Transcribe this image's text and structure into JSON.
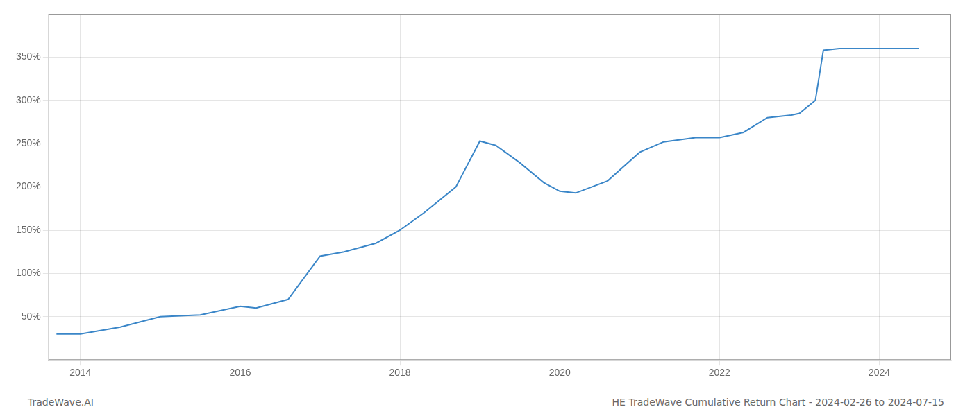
{
  "chart_data": {
    "type": "line",
    "annotations": [
      "TradeWave.AI",
      "HE TradeWave Cumulative Return Chart - 2024-02-26 to 2024-07-15"
    ],
    "x": [
      2013.7,
      2014.0,
      2014.5,
      2015.0,
      2015.5,
      2016.0,
      2016.2,
      2016.6,
      2017.0,
      2017.3,
      2017.7,
      2018.0,
      2018.3,
      2018.7,
      2019.0,
      2019.2,
      2019.5,
      2019.8,
      2020.0,
      2020.2,
      2020.6,
      2021.0,
      2021.3,
      2021.7,
      2022.0,
      2022.3,
      2022.6,
      2022.9,
      2023.0,
      2023.2,
      2023.3,
      2023.5,
      2024.0,
      2024.5
    ],
    "values": [
      30,
      30,
      38,
      50,
      52,
      62,
      60,
      70,
      120,
      125,
      135,
      150,
      170,
      200,
      253,
      248,
      228,
      205,
      195,
      193,
      207,
      240,
      252,
      257,
      257,
      263,
      280,
      283,
      285,
      300,
      358,
      360,
      360,
      360
    ],
    "color": "#3a86c8",
    "xlim": [
      2013.6,
      2024.9
    ],
    "xticks": [
      2014,
      2016,
      2018,
      2020,
      2022,
      2024
    ],
    "ylim": [
      0,
      400
    ],
    "yticks": [
      {
        "value": 50,
        "label": "50%"
      },
      {
        "value": 100,
        "label": "100%"
      },
      {
        "value": 150,
        "label": "150%"
      },
      {
        "value": 200,
        "label": "200%"
      },
      {
        "value": 250,
        "label": "250%"
      },
      {
        "value": 300,
        "label": "300%"
      },
      {
        "value": 350,
        "label": "350%"
      }
    ],
    "grid": true
  }
}
